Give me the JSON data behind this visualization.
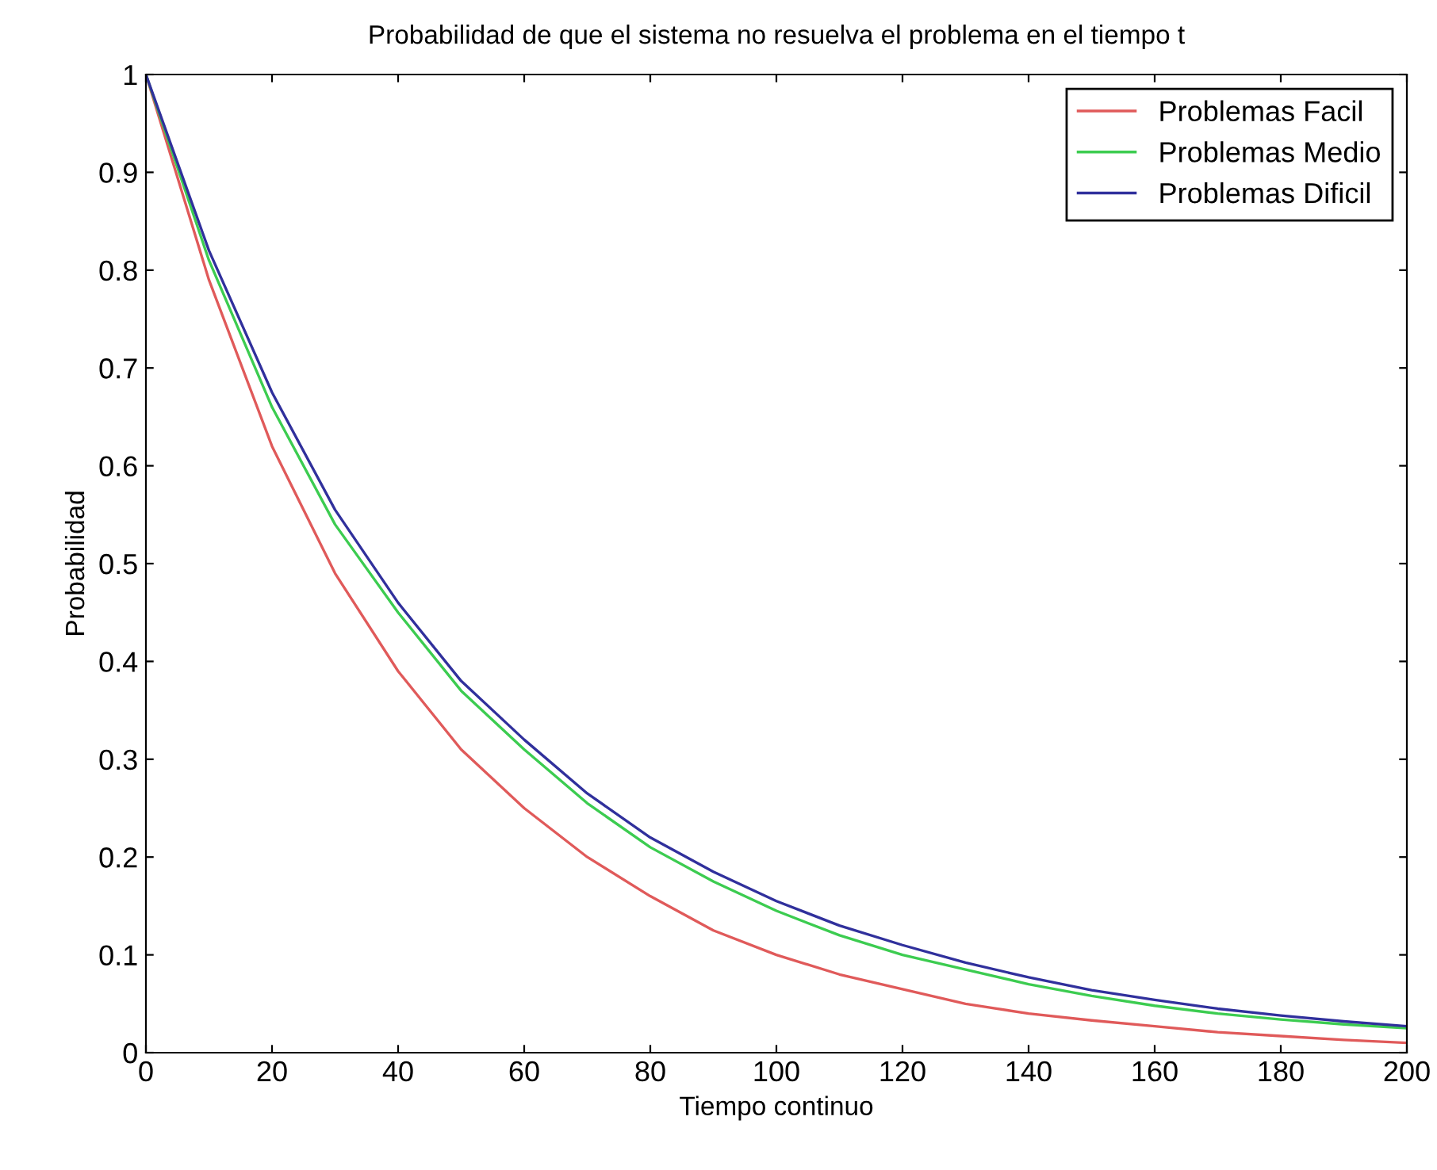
{
  "chart_data": {
    "type": "line",
    "title": "Probabilidad de que el sistema no resuelva el problema en el tiempo t",
    "xlabel": "Tiempo continuo",
    "ylabel": "Probabilidad",
    "x": [
      0,
      10,
      20,
      30,
      40,
      50,
      60,
      70,
      80,
      90,
      100,
      110,
      120,
      130,
      140,
      150,
      160,
      170,
      180,
      190,
      200
    ],
    "series": [
      {
        "name": "Problemas Facil",
        "color": "#e05a5a",
        "values": [
          1.0,
          0.79,
          0.62,
          0.49,
          0.39,
          0.31,
          0.25,
          0.2,
          0.16,
          0.125,
          0.1,
          0.08,
          0.065,
          0.05,
          0.04,
          0.033,
          0.027,
          0.021,
          0.017,
          0.013,
          0.01
        ]
      },
      {
        "name": "Problemas Medio",
        "color": "#3ccc50",
        "values": [
          1.0,
          0.81,
          0.66,
          0.54,
          0.45,
          0.37,
          0.31,
          0.255,
          0.21,
          0.175,
          0.145,
          0.12,
          0.1,
          0.085,
          0.07,
          0.058,
          0.048,
          0.04,
          0.034,
          0.029,
          0.025
        ]
      },
      {
        "name": "Problemas Dificil",
        "color": "#30309c",
        "values": [
          1.0,
          0.82,
          0.675,
          0.555,
          0.46,
          0.38,
          0.32,
          0.265,
          0.22,
          0.185,
          0.155,
          0.13,
          0.11,
          0.092,
          0.077,
          0.064,
          0.054,
          0.045,
          0.038,
          0.032,
          0.027
        ]
      }
    ],
    "xlim": [
      0,
      200
    ],
    "xticks": [
      0,
      20,
      40,
      60,
      80,
      100,
      120,
      140,
      160,
      180,
      200
    ],
    "ylim": [
      0,
      1
    ],
    "yticks": [
      0,
      0.1,
      0.2,
      0.3,
      0.4,
      0.5,
      0.6,
      0.7,
      0.8,
      0.9,
      1
    ],
    "grid": false,
    "legend": "top right",
    "marker": "none",
    "line_style": "solid"
  }
}
